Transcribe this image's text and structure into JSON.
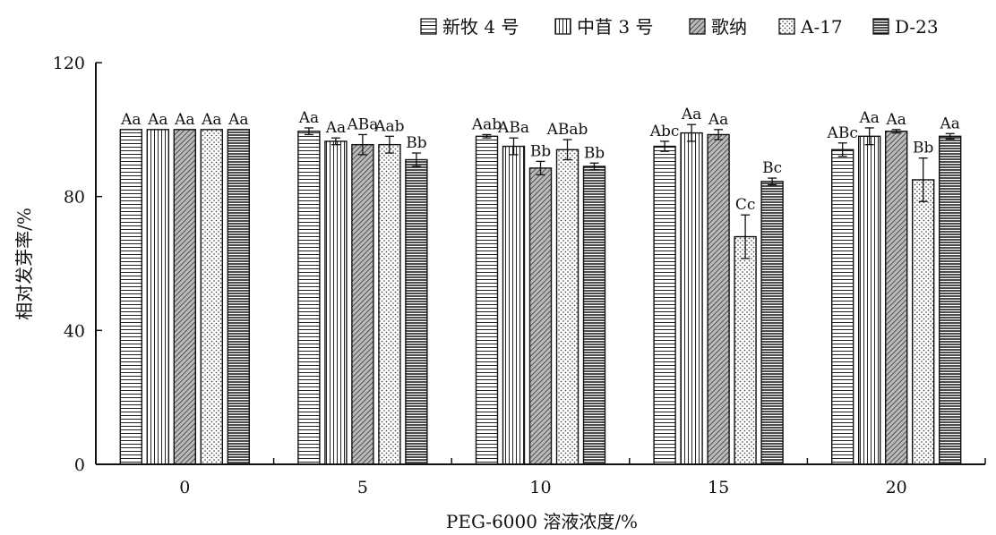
{
  "chart_data": {
    "type": "bar",
    "xlabel": "PEG-6000 溶液浓度/%",
    "ylabel": "相对发芽率/%",
    "ylim": [
      0,
      120
    ],
    "yticks": [
      "0",
      "40",
      "80",
      "120"
    ],
    "categories": [
      "0",
      "5",
      "10",
      "15",
      "20"
    ],
    "legend_position": "top-right",
    "series": [
      {
        "name": "新牧 4 号",
        "pattern": "pat-hlines",
        "values": [
          100,
          99.5,
          98,
          95,
          94
        ],
        "errors": [
          0,
          1,
          0.5,
          1.5,
          2
        ],
        "labels": [
          "Aa",
          "Aa",
          "Aab",
          "Abc",
          "ABc"
        ]
      },
      {
        "name": "中苜 3 号",
        "pattern": "pat-vlines",
        "values": [
          100,
          96.5,
          95,
          99,
          98
        ],
        "errors": [
          0,
          1,
          2.5,
          2.5,
          2.5
        ],
        "labels": [
          "Aa",
          "Aa",
          "ABa",
          "Aa",
          "Aa"
        ]
      },
      {
        "name": "歌纳",
        "pattern": "pat-diag",
        "values": [
          100,
          95.5,
          88.5,
          98.5,
          99.5
        ],
        "errors": [
          0,
          3,
          2,
          1.5,
          0.5
        ],
        "labels": [
          "Aa",
          "ABa",
          "Bb",
          "Aa",
          "Aa"
        ]
      },
      {
        "name": "A-17",
        "pattern": "pat-dots",
        "values": [
          100,
          95.5,
          94,
          68,
          85
        ],
        "errors": [
          0,
          2.5,
          3,
          6.5,
          6.5
        ],
        "labels": [
          "Aa",
          "Aab",
          "ABab",
          "Cc",
          "Bb"
        ]
      },
      {
        "name": "D-23",
        "pattern": "pat-dense",
        "values": [
          100,
          91,
          89,
          84.5,
          98
        ],
        "errors": [
          0,
          2,
          1,
          1,
          0.8
        ],
        "labels": [
          "Aa",
          "Bb",
          "Bb",
          "Bc",
          "Aa"
        ]
      }
    ]
  }
}
